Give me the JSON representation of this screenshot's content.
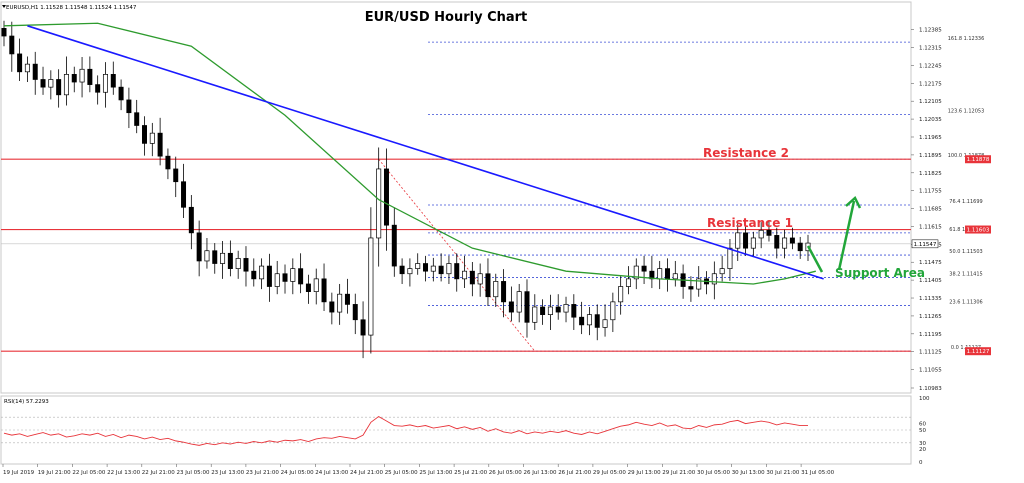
{
  "header": {
    "symbol_info": "EURUSD,H1  1.11528 1.11548 1.11524 1.11547"
  },
  "colors": {
    "candle": "#000000",
    "trendline": "#1a1aff",
    "moving_average": "#2e9b2e",
    "resistance_line": "#e8343a",
    "annotation_red": "#e8343a",
    "annotation_green": "#22a63a",
    "fib_line": "#3b4fd6",
    "rsi_line": "#e8343a",
    "grid": "#b0b0b0"
  },
  "chart_data": [
    {
      "type": "candlestick",
      "title": "EUR/USD Hourly Chart",
      "ylim": [
        1.10983,
        1.12454
      ],
      "y_ticks": [
        "1.12385",
        "1.12315",
        "1.12245",
        "1.12175",
        "1.12105",
        "1.12035",
        "1.11965",
        "1.11895",
        "1.11825",
        "1.11755",
        "1.11685",
        "1.11615",
        "1.11545",
        "1.11475",
        "1.11405",
        "1.11335",
        "1.11265",
        "1.11195",
        "1.11125",
        "1.11055",
        "1.10983"
      ],
      "x_ticks": [
        "19 Jul 2019",
        "19 Jul 21:00",
        "22 Jul 05:00",
        "22 Jul 13:00",
        "22 Jul 21:00",
        "23 Jul 05:00",
        "23 Jul 13:00",
        "23 Jul 21:00",
        "24 Jul 05:00",
        "24 Jul 13:00",
        "24 Jul 21:00",
        "25 Jul 05:00",
        "25 Jul 13:00",
        "25 Jul 21:00",
        "26 Jul 05:00",
        "26 Jul 13:00",
        "26 Jul 21:00",
        "29 Jul 05:00",
        "29 Jul 13:00",
        "29 Jul 21:00",
        "30 Jul 05:00",
        "30 Jul 13:00",
        "30 Jul 21:00",
        "31 Jul 05:00"
      ],
      "closes": [
        1.1236,
        1.1229,
        1.1222,
        1.1225,
        1.1219,
        1.1216,
        1.1219,
        1.1213,
        1.1221,
        1.1218,
        1.1223,
        1.1217,
        1.1214,
        1.1221,
        1.1216,
        1.1211,
        1.1206,
        1.1201,
        1.1194,
        1.1198,
        1.1189,
        1.1184,
        1.1179,
        1.1169,
        1.1159,
        1.1148,
        1.1152,
        1.1147,
        1.1151,
        1.1145,
        1.1149,
        1.1144,
        1.1141,
        1.1146,
        1.1138,
        1.1143,
        1.114,
        1.1145,
        1.1139,
        1.1136,
        1.1141,
        1.1132,
        1.1128,
        1.1135,
        1.1131,
        1.1125,
        1.1119,
        1.1157,
        1.1184,
        1.1162,
        1.1146,
        1.1143,
        1.1145,
        1.1147,
        1.1144,
        1.1146,
        1.1143,
        1.1147,
        1.1141,
        1.1144,
        1.1139,
        1.1143,
        1.1134,
        1.114,
        1.1132,
        1.1128,
        1.1136,
        1.1124,
        1.113,
        1.1127,
        1.113,
        1.1128,
        1.1131,
        1.1126,
        1.1123,
        1.1127,
        1.1122,
        1.1125,
        1.1132,
        1.1138,
        1.1141,
        1.1146,
        1.1144,
        1.1141,
        1.1145,
        1.1141,
        1.1143,
        1.1138,
        1.1137,
        1.1141,
        1.1139,
        1.1143,
        1.1145,
        1.1153,
        1.1159,
        1.1153,
        1.1157,
        1.116,
        1.1158,
        1.1153,
        1.1157,
        1.1155,
        1.1152,
        1.1155
      ],
      "volatility": [
        0.0005,
        0.0007,
        0.0006,
        0.0005,
        0.0006,
        0.0005,
        0.0006,
        0.0005,
        0.0007,
        0.0005,
        0.0006,
        0.0005,
        0.0006,
        0.0006,
        0.0005,
        0.0005,
        0.0006,
        0.0005,
        0.0006,
        0.0005,
        0.0006,
        0.0005,
        0.0006,
        0.0007,
        0.0008,
        0.0006,
        0.0005,
        0.0005,
        0.0006,
        0.0005,
        0.0005,
        0.0006,
        0.0005,
        0.0005,
        0.0006,
        0.0005,
        0.0006,
        0.0005,
        0.0006,
        0.0006,
        0.0005,
        0.0006,
        0.0006,
        0.0005,
        0.0006,
        0.0007,
        0.0009,
        0.0012,
        0.0014,
        0.001,
        0.0007,
        0.0005,
        0.0005,
        0.0004,
        0.0005,
        0.0004,
        0.0005,
        0.0005,
        0.0005,
        0.0006,
        0.0006,
        0.0005,
        0.0006,
        0.0005,
        0.0006,
        0.0006,
        0.0005,
        0.0006,
        0.0005,
        0.0005,
        0.0006,
        0.0005,
        0.0005,
        0.0005,
        0.0006,
        0.0005,
        0.0005,
        0.0006,
        0.0006,
        0.0005,
        0.0005,
        0.0005,
        0.0005,
        0.0006,
        0.0005,
        0.0005,
        0.0005,
        0.0006,
        0.0005,
        0.0005,
        0.0005,
        0.0006,
        0.0005,
        0.0006,
        0.0005,
        0.0005,
        0.0004,
        0.0004,
        0.0004,
        0.0005,
        0.0004,
        0.0004,
        0.0004,
        0.0004
      ],
      "moving_average": [
        [
          0,
          1.124
        ],
        [
          12,
          1.1241
        ],
        [
          24,
          1.1232
        ],
        [
          36,
          1.1205
        ],
        [
          48,
          1.1172
        ],
        [
          60,
          1.1153
        ],
        [
          72,
          1.1144
        ],
        [
          84,
          1.1141
        ],
        [
          90,
          1.114
        ],
        [
          96,
          1.1139
        ],
        [
          100,
          1.1141
        ],
        [
          104,
          1.1144
        ]
      ],
      "trendline": [
        [
          3,
          1.124
        ],
        [
          105,
          1.1141
        ]
      ],
      "fib_levels": [
        {
          "label": "161.8  1.12336",
          "value": 1.12336
        },
        {
          "label": "123.6  1.12053",
          "value": 1.12053
        },
        {
          "label": "100.0  1.11878",
          "value": 1.11878
        },
        {
          "label": "76.4  1.11699",
          "value": 1.11699
        },
        {
          "label": "61.8  1.11590",
          "value": 1.1159
        },
        {
          "label": "50.0  1.11503",
          "value": 1.11503
        },
        {
          "label": "38.2  1.11415",
          "value": 1.11415
        },
        {
          "label": "23.6  1.11306",
          "value": 1.11306
        },
        {
          "label": "0.0  1.11127",
          "value": 1.11127
        }
      ],
      "horizontal_lines": [
        {
          "value": 1.11878,
          "tag": "1.11878"
        },
        {
          "value": 1.11603,
          "tag": "1.11603"
        },
        {
          "value": 1.11127,
          "tag": "1.11127"
        }
      ],
      "current_price": {
        "value": 1.11547,
        "tag": "1.11547"
      },
      "annotations": [
        {
          "text": "Resistance 2",
          "color": "red"
        },
        {
          "text": "Resistance 1",
          "color": "red"
        },
        {
          "text": "Support Area",
          "color": "green"
        }
      ]
    },
    {
      "type": "line",
      "title": "RSI(14) 57.2293",
      "ylim": [
        0,
        100
      ],
      "y_ticks": [
        "100",
        "60",
        "50",
        "30",
        "20",
        "0"
      ],
      "guide_levels": [
        70,
        50,
        30
      ],
      "series": [
        {
          "name": "RSI(14)",
          "values": [
            45,
            42,
            44,
            40,
            43,
            46,
            42,
            44,
            39,
            41,
            44,
            42,
            45,
            40,
            43,
            38,
            42,
            40,
            36,
            39,
            35,
            37,
            33,
            31,
            28,
            26,
            29,
            27,
            30,
            28,
            31,
            29,
            32,
            30,
            33,
            31,
            34,
            33,
            35,
            32,
            36,
            38,
            37,
            40,
            38,
            36,
            42,
            62,
            71,
            64,
            57,
            56,
            58,
            55,
            57,
            53,
            55,
            57,
            52,
            55,
            51,
            54,
            48,
            52,
            47,
            45,
            49,
            44,
            47,
            45,
            48,
            46,
            49,
            45,
            43,
            47,
            44,
            48,
            52,
            56,
            58,
            62,
            59,
            57,
            61,
            56,
            58,
            53,
            52,
            57,
            54,
            58,
            59,
            63,
            65,
            60,
            62,
            64,
            62,
            58,
            61,
            59,
            57,
            57
          ]
        }
      ]
    }
  ]
}
